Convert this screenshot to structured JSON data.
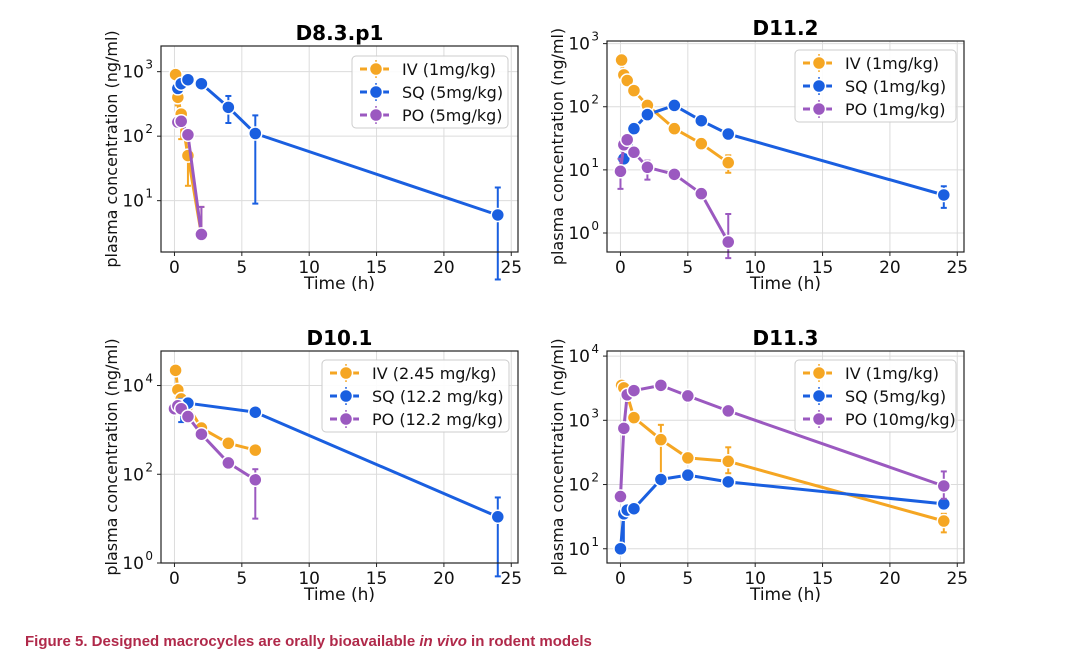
{
  "colors": {
    "IV": "#f5a623",
    "SQ": "#1a5fe0",
    "PO": "#9b59c0"
  },
  "chart_data": [
    {
      "type": "line",
      "title": "D8.3.p1",
      "xlabel": "Time (h)",
      "ylabel": "plasma concentration (ng/ml)",
      "yscale": "log",
      "xlim": [
        -1,
        25.5
      ],
      "ylim": [
        1.6,
        2500
      ],
      "xticks": [
        0,
        5,
        10,
        15,
        20,
        25
      ],
      "yticks": [
        {
          "v": 10,
          "e": "1"
        },
        {
          "v": 100,
          "e": "2"
        },
        {
          "v": 1000,
          "e": "3"
        }
      ],
      "grid": true,
      "legend": "top-right",
      "series": [
        {
          "name": "IV (1mg/kg)",
          "key": "IV",
          "x": [
            0.083,
            0.25,
            0.5,
            1,
            2
          ],
          "y": [
            900,
            400,
            220,
            50,
            3
          ],
          "err": [
            [
              0.25,
              140,
              300
            ],
            [
              0.5,
              90,
              200
            ],
            [
              1,
              17,
              50
            ],
            [
              2,
              3,
              8
            ]
          ]
        },
        {
          "name": "SQ (5mg/kg)",
          "key": "SQ",
          "x": [
            0.25,
            0.5,
            1,
            2,
            4,
            6,
            24
          ],
          "y": [
            550,
            650,
            750,
            650,
            280,
            110,
            6
          ],
          "err": [
            [
              4,
              160,
              420
            ],
            [
              6,
              9,
              210
            ],
            [
              24,
              0.6,
              16
            ]
          ]
        },
        {
          "name": "PO (5mg/kg)",
          "key": "PO",
          "x": [
            0.25,
            0.5,
            1,
            2
          ],
          "y": [
            165,
            170,
            105,
            3
          ],
          "err": [
            [
              2,
              3,
              8
            ]
          ]
        }
      ]
    },
    {
      "type": "line",
      "title": "D11.2",
      "xlabel": "Time (h)",
      "ylabel": "plasma concentration (ng/ml)",
      "yscale": "log",
      "xlim": [
        -1,
        25.5
      ],
      "ylim": [
        0.5,
        1100
      ],
      "xticks": [
        0,
        5,
        10,
        15,
        20,
        25
      ],
      "yticks": [
        {
          "v": 1,
          "e": "0"
        },
        {
          "v": 10,
          "e": "1"
        },
        {
          "v": 100,
          "e": "2"
        },
        {
          "v": 1000,
          "e": "3"
        }
      ],
      "grid": true,
      "legend": "top-right",
      "series": [
        {
          "name": "IV (1mg/kg)",
          "key": "IV",
          "x": [
            0.083,
            0.25,
            0.5,
            1,
            2,
            4,
            6,
            8
          ],
          "y": [
            550,
            320,
            260,
            180,
            105,
            45,
            26,
            13
          ],
          "err": [
            [
              8,
              9,
              17
            ]
          ]
        },
        {
          "name": "SQ (1mg/kg)",
          "key": "SQ",
          "x": [
            0.25,
            0.5,
            1,
            2,
            4,
            6,
            8,
            24
          ],
          "y": [
            15,
            25,
            45,
            75,
            105,
            60,
            37,
            4
          ],
          "err": [
            [
              24,
              2.5,
              5.5
            ]
          ]
        },
        {
          "name": "PO (1mg/kg)",
          "key": "PO",
          "x": [
            0,
            0.25,
            0.5,
            1,
            2,
            4,
            6,
            8
          ],
          "y": [
            9.5,
            25,
            30,
            19,
            11,
            8.5,
            4.2,
            0.72
          ],
          "err": [
            [
              0,
              5,
              15
            ],
            [
              2,
              7,
              14
            ],
            [
              8,
              0.4,
              2
            ]
          ]
        }
      ]
    },
    {
      "type": "line",
      "title": "D10.1",
      "xlabel": "Time (h)",
      "ylabel": "plasma concentration (ng/ml)",
      "yscale": "log",
      "xlim": [
        -1,
        25.5
      ],
      "ylim": [
        1,
        60000
      ],
      "xticks": [
        0,
        5,
        10,
        15,
        20,
        25
      ],
      "yticks": [
        {
          "v": 1,
          "e": "0"
        },
        {
          "v": 100,
          "e": "2"
        },
        {
          "v": 10000,
          "e": "4"
        }
      ],
      "grid": true,
      "legend": "top-right",
      "series": [
        {
          "name": "IV (2.45 mg/kg)",
          "key": "IV",
          "x": [
            0.083,
            0.25,
            0.5,
            1,
            2,
            4,
            6
          ],
          "y": [
            22000,
            8000,
            5000,
            3500,
            1100,
            500,
            350
          ],
          "err": []
        },
        {
          "name": "SQ (12.2 mg/kg)",
          "key": "SQ",
          "x": [
            0.5,
            1,
            6,
            24
          ],
          "y": [
            3500,
            4000,
            2500,
            11
          ],
          "err": [
            [
              0.5,
              1500,
              5000
            ],
            [
              24,
              0.5,
              30
            ]
          ]
        },
        {
          "name": "PO (12.2 mg/kg)",
          "key": "PO",
          "x": [
            0,
            0.25,
            0.5,
            1,
            2,
            4,
            6
          ],
          "y": [
            3000,
            3500,
            3000,
            2000,
            800,
            180,
            75
          ],
          "err": [
            [
              6,
              10,
              130
            ]
          ]
        }
      ]
    },
    {
      "type": "line",
      "title": "D11.3",
      "xlabel": "Time (h)",
      "ylabel": "plasma concentration (ng/ml)",
      "yscale": "log",
      "xlim": [
        -1,
        25.5
      ],
      "ylim": [
        6,
        12000
      ],
      "xticks": [
        0,
        5,
        10,
        15,
        20,
        25
      ],
      "yticks": [
        {
          "v": 10,
          "e": "1"
        },
        {
          "v": 100,
          "e": "2"
        },
        {
          "v": 1000,
          "e": "3"
        },
        {
          "v": 10000,
          "e": "4"
        }
      ],
      "grid": true,
      "legend": "top-right",
      "series": [
        {
          "name": "IV (1mg/kg)",
          "key": "IV",
          "x": [
            0.083,
            0.25,
            0.5,
            1,
            3,
            5,
            8,
            24
          ],
          "y": [
            3500,
            3200,
            2500,
            1100,
            500,
            260,
            230,
            27
          ],
          "err": [
            [
              3,
              140,
              850
            ],
            [
              8,
              150,
              380
            ],
            [
              24,
              18,
              35
            ]
          ]
        },
        {
          "name": "SQ (5mg/kg)",
          "key": "SQ",
          "x": [
            0,
            0.25,
            0.5,
            1,
            3,
            5,
            8,
            24
          ],
          "y": [
            10,
            35,
            40,
            42,
            120,
            140,
            110,
            50
          ],
          "err": [
            [
              0.25,
              10,
              40
            ]
          ]
        },
        {
          "name": "PO (10mg/kg)",
          "key": "PO",
          "x": [
            0,
            0.25,
            0.5,
            1,
            3,
            5,
            8,
            24
          ],
          "y": [
            65,
            750,
            2500,
            2900,
            3500,
            2400,
            1400,
            95
          ],
          "err": [
            [
              24,
              60,
              160
            ]
          ]
        }
      ]
    }
  ],
  "caption": {
    "prefix": "Figure 5.  Designed macrocycles are orally bioavailable ",
    "italic": "in vivo",
    "suffix": " in rodent models"
  }
}
